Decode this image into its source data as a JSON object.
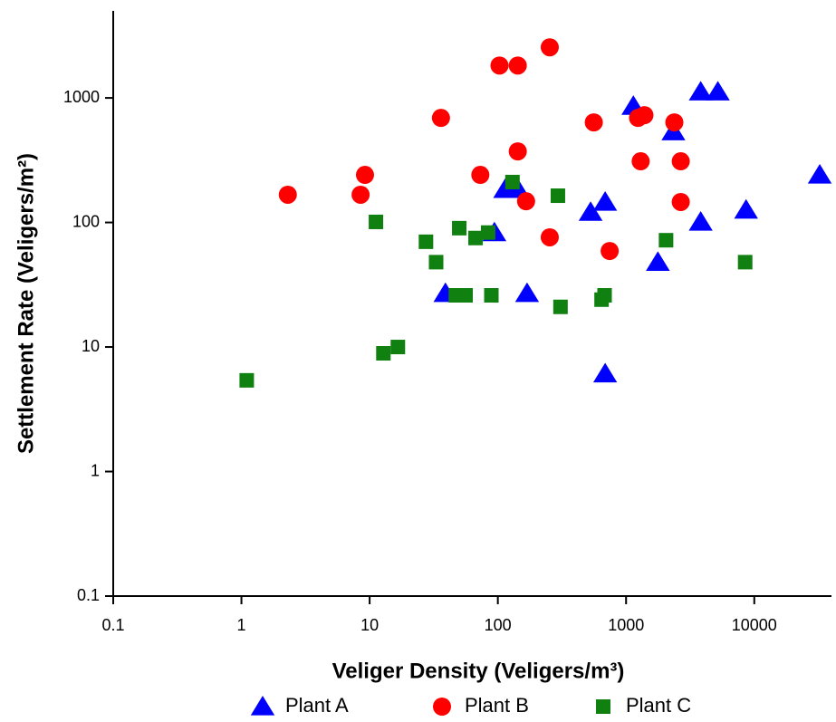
{
  "chart_data": {
    "type": "scatter",
    "x_label": "Veliger Density (Veligers/m³)",
    "y_label": "Settlement Rate (Veligers/m²)",
    "x_log": true,
    "y_log": true,
    "xlim": [
      0.1,
      40000
    ],
    "ylim": [
      0.1,
      5000
    ],
    "xticks": [
      0.1,
      1,
      10,
      100,
      1000,
      10000
    ],
    "yticks": [
      0.1,
      1,
      10,
      100,
      1000
    ],
    "legend": "bottom",
    "series": [
      {
        "name": "Plant A",
        "color": "#0000ff",
        "marker": "triangle",
        "x": [
          39,
          94,
          114,
          143,
          169,
          529,
          687,
          687,
          1140,
          2340,
          1770,
          3820,
          5200,
          3820,
          8630,
          32400
        ],
        "y": [
          27,
          83,
          185,
          185,
          27,
          121,
          146,
          6.1,
          859,
          537,
          48,
          1120,
          1120,
          101,
          126,
          241
        ]
      },
      {
        "name": "Plant B",
        "color": "#ff0000",
        "marker": "circle",
        "x": [
          2.3,
          8.5,
          9.2,
          36,
          73,
          103,
          143,
          143,
          166,
          254,
          254,
          560,
          745,
          1240,
          1390,
          1300,
          2380,
          2670,
          2670
        ],
        "y": [
          167,
          167,
          241,
          691,
          241,
          1820,
          1820,
          372,
          148,
          2550,
          76,
          636,
          59,
          691,
          727,
          310,
          636,
          310,
          146
        ]
      },
      {
        "name": "Plant C",
        "color": "#108010",
        "marker": "square",
        "x": [
          1.1,
          11.2,
          12.8,
          16.6,
          27.5,
          33,
          50,
          47,
          56,
          67,
          84,
          89,
          130,
          294,
          308,
          644,
          680,
          2050,
          8490
        ],
        "y": [
          5.4,
          101,
          8.9,
          10,
          70,
          48,
          90,
          26,
          26,
          75,
          83,
          26,
          211,
          164,
          21,
          24,
          26,
          72,
          48
        ]
      }
    ]
  }
}
